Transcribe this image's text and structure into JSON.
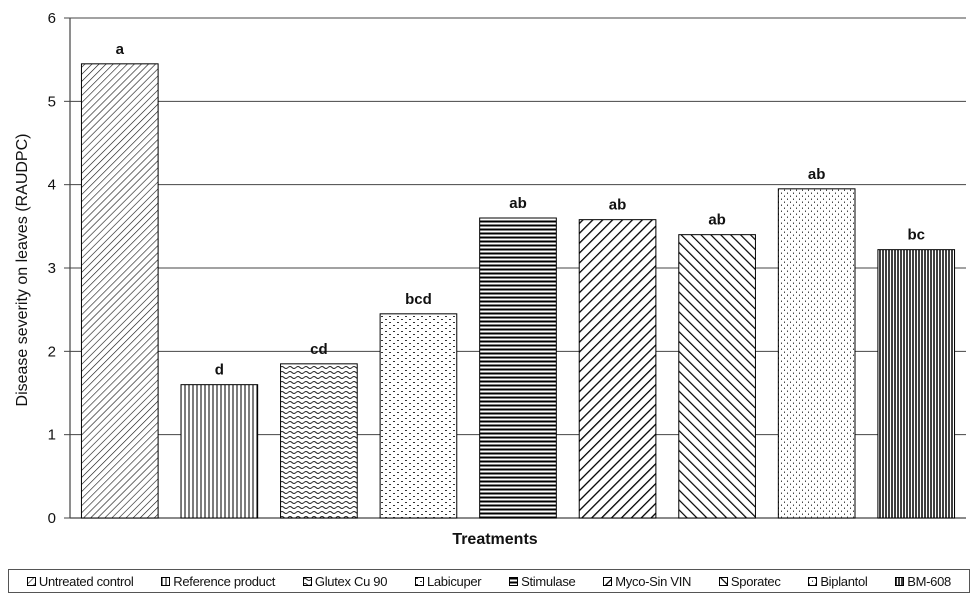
{
  "chart_data": {
    "type": "bar",
    "title": "",
    "xlabel": "Treatments",
    "ylabel": "Disease severity on leaves (RAUDPC)",
    "ylim": [
      0,
      6
    ],
    "yticks": [
      "0",
      "1",
      "2",
      "3",
      "4",
      "5",
      "6"
    ],
    "grid": true,
    "legend_position": "bottom",
    "categories": [
      "Untreated control",
      "Reference product",
      "Glutex Cu 90",
      "Labicuper",
      "Stimulase",
      "Myco-Sin VIN",
      "Sporatec",
      "Biplantol",
      "BM-608"
    ],
    "values": [
      5.45,
      1.6,
      1.85,
      2.45,
      3.6,
      3.58,
      3.4,
      3.95,
      3.22
    ],
    "significance_letters": [
      "a",
      "d",
      "cd",
      "bcd",
      "ab",
      "ab",
      "ab",
      "ab",
      "bc"
    ],
    "patterns": [
      "diag-left-fine",
      "vertical",
      "wave",
      "dots-dashes",
      "horizontal-bold",
      "diag-right-bold",
      "diag-left-bold",
      "dots-fine",
      "vertical-dense"
    ]
  }
}
